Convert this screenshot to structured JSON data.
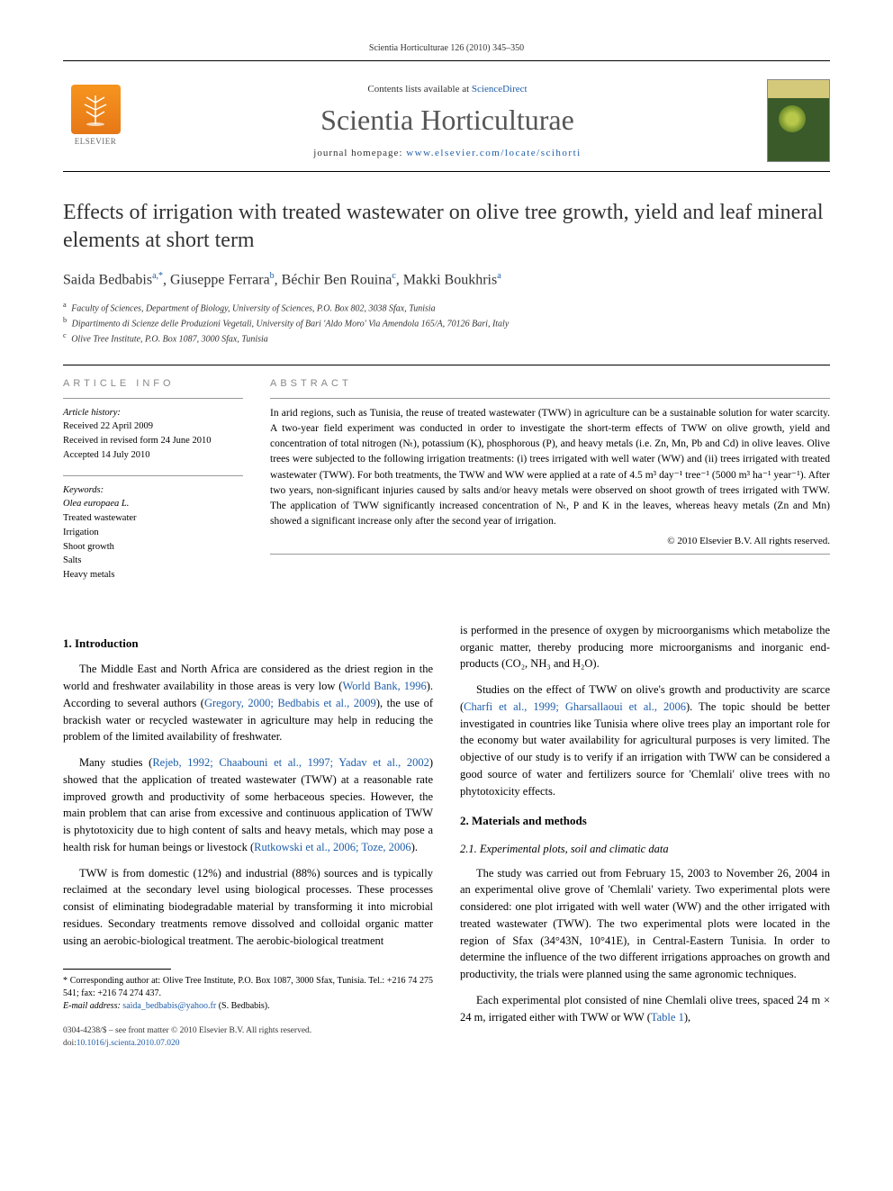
{
  "running_head": "Scientia Horticulturae 126 (2010) 345–350",
  "masthead": {
    "contents_prefix": "Contents lists available at ",
    "contents_link": "ScienceDirect",
    "journal": "Scientia Horticulturae",
    "homepage_prefix": "journal homepage: ",
    "homepage_url": "www.elsevier.com/locate/scihorti",
    "publisher_word": "ELSEVIER"
  },
  "title": "Effects of irrigation with treated wastewater on olive tree growth, yield and leaf mineral elements at short term",
  "authors_html": "Saida Bedbabis<sup>a,*</sup>, Giuseppe Ferrara<sup>b</sup>, Béchir Ben Rouina<sup>c</sup>, Makki Boukhris<sup>a</sup>",
  "affiliations": [
    {
      "key": "a",
      "text": "Faculty of Sciences, Department of Biology, University of Sciences, P.O. Box 802, 3038 Sfax, Tunisia"
    },
    {
      "key": "b",
      "text": "Dipartimento di Scienze delle Produzioni Vegetali, University of Bari 'Aldo Moro' Via Amendola 165/A, 70126 Bari, Italy"
    },
    {
      "key": "c",
      "text": "Olive Tree Institute, P.O. Box 1087, 3000 Sfax, Tunisia"
    }
  ],
  "info": {
    "heading": "ARTICLE INFO",
    "history_label": "Article history:",
    "received": "Received 22 April 2009",
    "revised": "Received in revised form 24 June 2010",
    "accepted": "Accepted 14 July 2010",
    "keywords_label": "Keywords:",
    "keywords": [
      "Olea europaea L.",
      "Treated wastewater",
      "Irrigation",
      "Shoot growth",
      "Salts",
      "Heavy metals"
    ]
  },
  "abstract": {
    "heading": "ABSTRACT",
    "text": "In arid regions, such as Tunisia, the reuse of treated wastewater (TWW) in agriculture can be a sustainable solution for water scarcity. A two-year field experiment was conducted in order to investigate the short-term effects of TWW on olive growth, yield and concentration of total nitrogen (Nₜ), potassium (K), phosphorous (P), and heavy metals (i.e. Zn, Mn, Pb and Cd) in olive leaves. Olive trees were subjected to the following irrigation treatments: (i) trees irrigated with well water (WW) and (ii) trees irrigated with treated wastewater (TWW). For both treatments, the TWW and WW were applied at a rate of 4.5 m³ day⁻¹ tree⁻¹ (5000 m³ ha⁻¹ year⁻¹). After two years, non-significant injuries caused by salts and/or heavy metals were observed on shoot growth of trees irrigated with TWW. The application of TWW significantly increased concentration of Nₜ, P and K in the leaves, whereas heavy metals (Zn and Mn) showed a significant increase only after the second year of irrigation.",
    "copyright": "© 2010 Elsevier B.V. All rights reserved."
  },
  "body": {
    "intro_heading": "1.  Introduction",
    "intro_p1_a": "The Middle East and North Africa are considered as the driest region in the world and freshwater availability in those areas is very low (",
    "intro_p1_link1": "World Bank, 1996",
    "intro_p1_b": "). According to several authors (",
    "intro_p1_link2": "Gregory, 2000; Bedbabis et al., 2009",
    "intro_p1_c": "), the use of brackish water or recycled wastewater in agriculture may help in reducing the problem of the limited availability of freshwater.",
    "intro_p2_a": "Many studies (",
    "intro_p2_link1": "Rejeb, 1992; Chaabouni et al., 1997; Yadav et al., 2002",
    "intro_p2_b": ") showed that the application of treated wastewater (TWW) at a reasonable rate improved growth and productivity of some herbaceous species. However, the main problem that can arise from excessive and continuous application of TWW is phytotoxicity due to high content of salts and heavy metals, which may pose a health risk for human beings or livestock (",
    "intro_p2_link2": "Rutkowski et al., 2006; Toze, 2006",
    "intro_p2_c": ").",
    "intro_p3": "TWW is from domestic (12%) and industrial (88%) sources and is typically reclaimed at the secondary level using biological processes. These processes consist of eliminating biodegradable material by transforming it into microbial residues. Secondary treatments remove dissolved and colloidal organic matter using an aerobic-biological treatment. The aerobic-biological treatment",
    "col2_p1": "is performed in the presence of oxygen by microorganisms which metabolize the organic matter, thereby producing more microorganisms and inorganic end-products (CO₂, NH₃ and H₂O).",
    "col2_p2_a": "Studies on the effect of TWW on olive's growth and productivity are scarce (",
    "col2_p2_link": "Charfi et al., 1999; Gharsallaoui et al., 2006",
    "col2_p2_b": "). The topic should be better investigated in countries like Tunisia where olive trees play an important role for the economy but water availability for agricultural purposes is very limited. The objective of our study is to verify if an irrigation with TWW can be considered a good source of water and fertilizers source for 'Chemlali' olive trees with no phytotoxicity effects.",
    "methods_heading": "2.  Materials and methods",
    "methods_sub": "2.1.  Experimental plots, soil and climatic data",
    "methods_p1": "The study was carried out from February 15, 2003 to November 26, 2004 in an experimental olive grove of 'Chemlali' variety. Two experimental plots were considered: one plot irrigated with well water (WW) and the other irrigated with treated wastewater (TWW). The two experimental plots were located in the region of Sfax (34°43N, 10°41E), in Central-Eastern Tunisia. In order to determine the influence of the two different irrigations approaches on growth and productivity, the trials were planned using the same agronomic techniques.",
    "methods_p2_a": "Each experimental plot consisted of nine Chemlali olive trees, spaced 24 m × 24 m, irrigated either with TWW or WW (",
    "methods_p2_link": "Table 1",
    "methods_p2_b": "),"
  },
  "footnotes": {
    "corr": "* Corresponding author at: Olive Tree Institute, P.O. Box 1087, 3000 Sfax, Tunisia. Tel.: +216 74 275 541; fax: +216 74 274 437.",
    "email_label": "E-mail address: ",
    "email": "saida_bedbabis@yahoo.fr",
    "email_suffix": " (S. Bedbabis)."
  },
  "bottom": {
    "issn": "0304-4238/$ – see front matter © 2010 Elsevier B.V. All rights reserved.",
    "doi_label": "doi:",
    "doi": "10.1016/j.scienta.2010.07.020"
  }
}
